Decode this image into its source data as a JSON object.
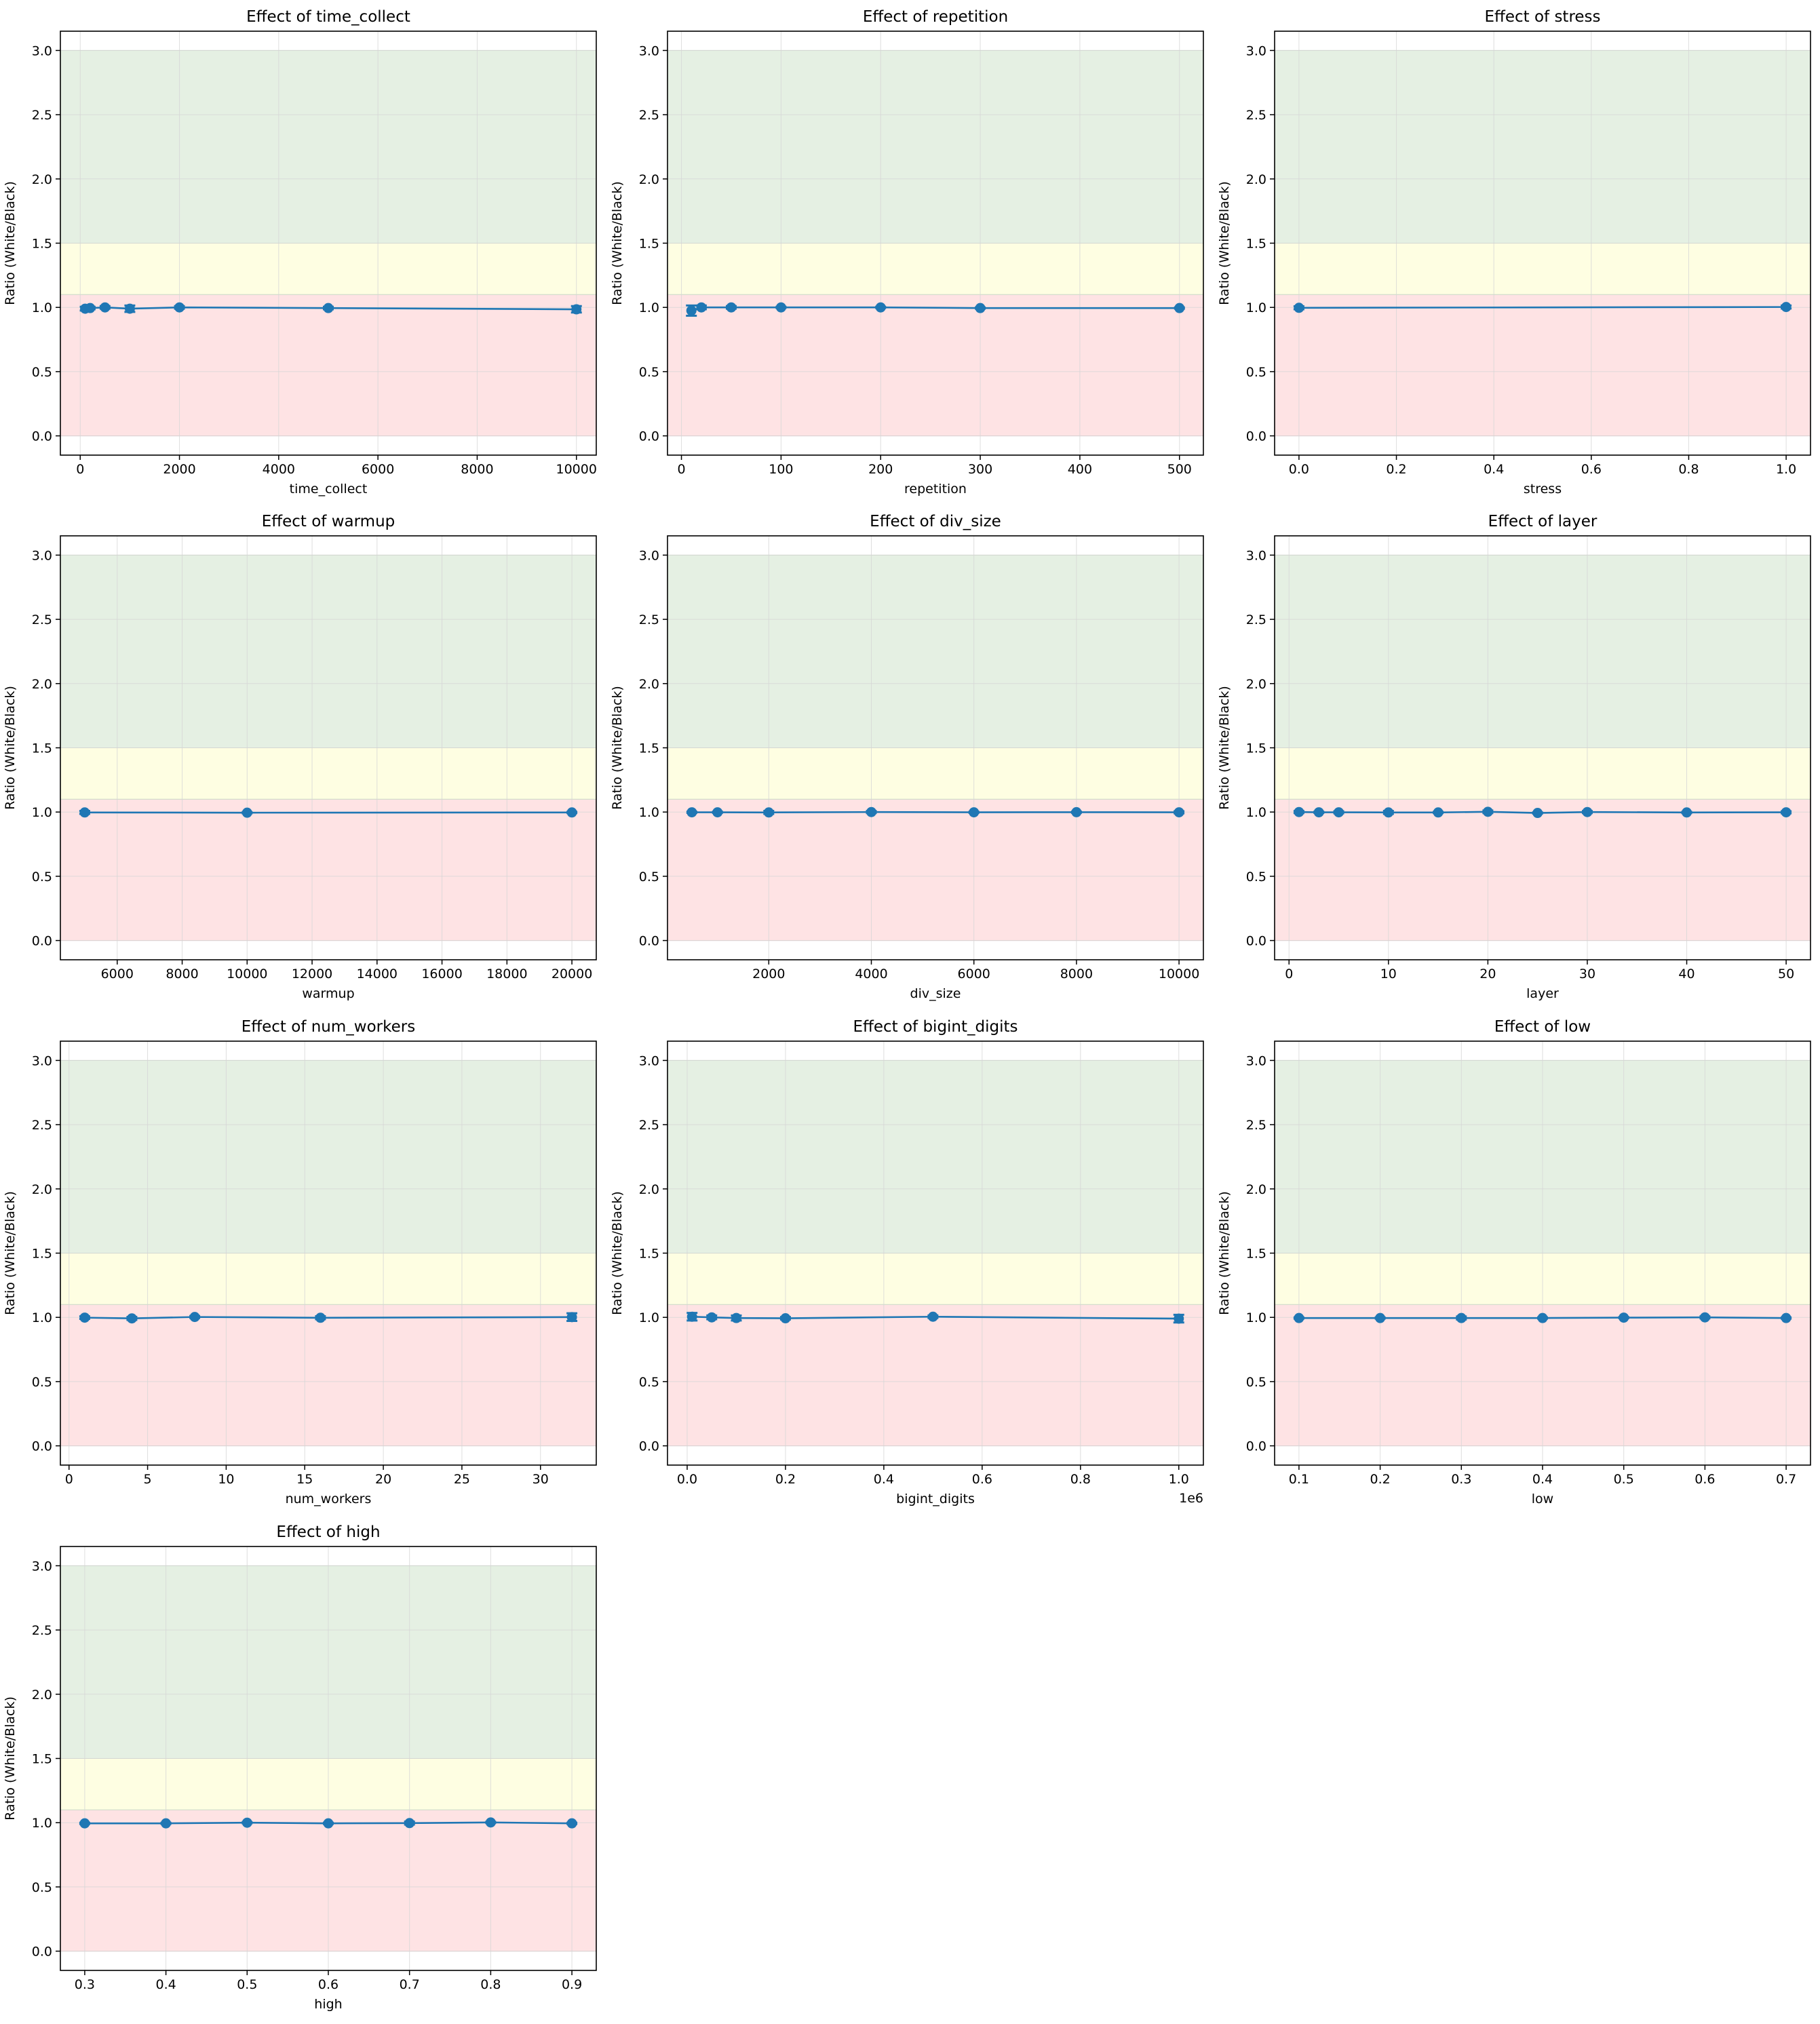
{
  "colors": {
    "series": "#1f77b4",
    "green_band": "#e5f0e3",
    "yellow_band": "#fefee2",
    "red_band": "#fee3e4",
    "grid": "#d6d6d6"
  },
  "chart_data": [
    {
      "type": "line",
      "title": "Effect of time_collect",
      "xlabel": "time_collect",
      "ylabel": "Ratio (White/Black)",
      "xlim": [
        -400,
        10400
      ],
      "ylim": [
        -0.15,
        3.15
      ],
      "xticks": [
        0,
        2000,
        4000,
        6000,
        8000,
        10000
      ],
      "xtick_labels": [
        "0",
        "2000",
        "4000",
        "6000",
        "8000",
        "10000"
      ],
      "yticks": [
        0.0,
        0.5,
        1.0,
        1.5,
        2.0,
        2.5,
        3.0
      ],
      "ytick_labels": [
        "0.0",
        "0.5",
        "1.0",
        "1.5",
        "2.0",
        "2.5",
        "3.0"
      ],
      "bands": [
        {
          "from": 0,
          "to": 1.1,
          "color": "red"
        },
        {
          "from": 1.1,
          "to": 1.5,
          "color": "yellow"
        },
        {
          "from": 1.5,
          "to": 3.0,
          "color": "green"
        }
      ],
      "grid": true,
      "x": [
        100,
        200,
        500,
        1000,
        2000,
        5000,
        10000
      ],
      "y": [
        0.99,
        0.995,
        1.0,
        0.99,
        1.0,
        0.995,
        0.985
      ],
      "yerr": [
        0.015,
        0.01,
        0.01,
        0.025,
        0.01,
        0.01,
        0.025
      ]
    },
    {
      "type": "line",
      "title": "Effect of repetition",
      "xlabel": "repetition",
      "ylabel": "Ratio (White/Black)",
      "xlim": [
        -14,
        524
      ],
      "ylim": [
        -0.15,
        3.15
      ],
      "xticks": [
        0,
        100,
        200,
        300,
        400,
        500
      ],
      "xtick_labels": [
        "0",
        "100",
        "200",
        "300",
        "400",
        "500"
      ],
      "yticks": [
        0.0,
        0.5,
        1.0,
        1.5,
        2.0,
        2.5,
        3.0
      ],
      "ytick_labels": [
        "0.0",
        "0.5",
        "1.0",
        "1.5",
        "2.0",
        "2.5",
        "3.0"
      ],
      "bands": [
        {
          "from": 0,
          "to": 1.1,
          "color": "red"
        },
        {
          "from": 1.1,
          "to": 1.5,
          "color": "yellow"
        },
        {
          "from": 1.5,
          "to": 3.0,
          "color": "green"
        }
      ],
      "grid": true,
      "x": [
        10,
        20,
        50,
        100,
        200,
        300,
        500
      ],
      "y": [
        0.975,
        1.0,
        1.0,
        1.0,
        1.0,
        0.995,
        0.995
      ],
      "yerr": [
        0.04,
        0.015,
        0.01,
        0.005,
        0.005,
        0.005,
        0.005
      ]
    },
    {
      "type": "line",
      "title": "Effect of stress",
      "xlabel": "stress",
      "ylabel": "Ratio (White/Black)",
      "xlim": [
        -0.05,
        1.05
      ],
      "ylim": [
        -0.15,
        3.15
      ],
      "xticks": [
        0.0,
        0.2,
        0.4,
        0.6,
        0.8,
        1.0
      ],
      "xtick_labels": [
        "0.0",
        "0.2",
        "0.4",
        "0.6",
        "0.8",
        "1.0"
      ],
      "yticks": [
        0.0,
        0.5,
        1.0,
        1.5,
        2.0,
        2.5,
        3.0
      ],
      "ytick_labels": [
        "0.0",
        "0.5",
        "1.0",
        "1.5",
        "2.0",
        "2.5",
        "3.0"
      ],
      "bands": [
        {
          "from": 0,
          "to": 1.1,
          "color": "red"
        },
        {
          "from": 1.1,
          "to": 1.5,
          "color": "yellow"
        },
        {
          "from": 1.5,
          "to": 3.0,
          "color": "green"
        }
      ],
      "grid": true,
      "x": [
        0,
        1
      ],
      "y": [
        0.997,
        1.003
      ],
      "yerr": [
        0.012,
        0.012
      ]
    },
    {
      "type": "line",
      "title": "Effect of warmup",
      "xlabel": "warmup",
      "ylabel": "Ratio (White/Black)",
      "xlim": [
        4250,
        20750
      ],
      "ylim": [
        -0.15,
        3.15
      ],
      "xticks": [
        6000,
        8000,
        10000,
        12000,
        14000,
        16000,
        18000,
        20000
      ],
      "xtick_labels": [
        "6000",
        "8000",
        "10000",
        "12000",
        "14000",
        "16000",
        "18000",
        "20000"
      ],
      "yticks": [
        0.0,
        0.5,
        1.0,
        1.5,
        2.0,
        2.5,
        3.0
      ],
      "ytick_labels": [
        "0.0",
        "0.5",
        "1.0",
        "1.5",
        "2.0",
        "2.5",
        "3.0"
      ],
      "bands": [
        {
          "from": 0,
          "to": 1.1,
          "color": "red"
        },
        {
          "from": 1.1,
          "to": 1.5,
          "color": "yellow"
        },
        {
          "from": 1.5,
          "to": 3.0,
          "color": "green"
        }
      ],
      "grid": true,
      "x": [
        5000,
        10000,
        20000
      ],
      "y": [
        0.997,
        0.995,
        0.997
      ],
      "yerr": [
        0.012,
        0.005,
        0.005
      ]
    },
    {
      "type": "line",
      "title": "Effect of div_size",
      "xlabel": "div_size",
      "ylabel": "Ratio (White/Black)",
      "xlim": [
        25,
        10475
      ],
      "ylim": [
        -0.15,
        3.15
      ],
      "xticks": [
        2000,
        4000,
        6000,
        8000,
        10000
      ],
      "xtick_labels": [
        "2000",
        "4000",
        "6000",
        "8000",
        "10000"
      ],
      "yticks": [
        0.0,
        0.5,
        1.0,
        1.5,
        2.0,
        2.5,
        3.0
      ],
      "ytick_labels": [
        "0.0",
        "0.5",
        "1.0",
        "1.5",
        "2.0",
        "2.5",
        "3.0"
      ],
      "bands": [
        {
          "from": 0,
          "to": 1.1,
          "color": "red"
        },
        {
          "from": 1.1,
          "to": 1.5,
          "color": "yellow"
        },
        {
          "from": 1.5,
          "to": 3.0,
          "color": "green"
        }
      ],
      "grid": true,
      "x": [
        500,
        1000,
        2000,
        4000,
        6000,
        8000,
        10000
      ],
      "y": [
        0.998,
        0.998,
        0.997,
        1.0,
        0.998,
        0.999,
        0.998
      ],
      "yerr": [
        0.005,
        0.005,
        0.012,
        0.008,
        0.005,
        0.005,
        0.008
      ]
    },
    {
      "type": "line",
      "title": "Effect of layer",
      "xlabel": "layer",
      "ylabel": "Ratio (White/Black)",
      "xlim": [
        -1.45,
        52.45
      ],
      "ylim": [
        -0.15,
        3.15
      ],
      "xticks": [
        0,
        10,
        20,
        30,
        40,
        50
      ],
      "xtick_labels": [
        "0",
        "10",
        "20",
        "30",
        "40",
        "50"
      ],
      "yticks": [
        0.0,
        0.5,
        1.0,
        1.5,
        2.0,
        2.5,
        3.0
      ],
      "ytick_labels": [
        "0.0",
        "0.5",
        "1.0",
        "1.5",
        "2.0",
        "2.5",
        "3.0"
      ],
      "bands": [
        {
          "from": 0,
          "to": 1.1,
          "color": "red"
        },
        {
          "from": 1.1,
          "to": 1.5,
          "color": "yellow"
        },
        {
          "from": 1.5,
          "to": 3.0,
          "color": "green"
        }
      ],
      "grid": true,
      "x": [
        1,
        3,
        5,
        10,
        15,
        20,
        25,
        30,
        40,
        50
      ],
      "y": [
        1.0,
        0.998,
        0.998,
        0.997,
        0.997,
        1.002,
        0.993,
        1.0,
        0.997,
        0.998
      ],
      "yerr": [
        0.008,
        0.005,
        0.008,
        0.012,
        0.005,
        0.01,
        0.005,
        0.008,
        0.005,
        0.008
      ]
    },
    {
      "type": "line",
      "title": "Effect of num_workers",
      "xlabel": "num_workers",
      "ylabel": "Ratio (White/Black)",
      "xlim": [
        -0.55,
        33.55
      ],
      "ylim": [
        -0.15,
        3.15
      ],
      "xticks": [
        0,
        5,
        10,
        15,
        20,
        25,
        30
      ],
      "xtick_labels": [
        "0",
        "5",
        "10",
        "15",
        "20",
        "25",
        "30"
      ],
      "yticks": [
        0.0,
        0.5,
        1.0,
        1.5,
        2.0,
        2.5,
        3.0
      ],
      "ytick_labels": [
        "0.0",
        "0.5",
        "1.0",
        "1.5",
        "2.0",
        "2.5",
        "3.0"
      ],
      "bands": [
        {
          "from": 0,
          "to": 1.1,
          "color": "red"
        },
        {
          "from": 1.1,
          "to": 1.5,
          "color": "yellow"
        },
        {
          "from": 1.5,
          "to": 3.0,
          "color": "green"
        }
      ],
      "grid": true,
      "x": [
        1,
        4,
        8,
        16,
        32
      ],
      "y": [
        0.998,
        0.992,
        1.003,
        0.997,
        1.002
      ],
      "yerr": [
        0.01,
        0.012,
        0.008,
        0.012,
        0.03
      ]
    },
    {
      "type": "line",
      "title": "Effect of bigint_digits",
      "xlabel": "bigint_digits",
      "ylabel": "Ratio (White/Black)",
      "xlim": [
        -40000,
        1050000
      ],
      "ylim": [
        -0.15,
        3.15
      ],
      "xticks": [
        0,
        200000,
        400000,
        600000,
        800000,
        1000000
      ],
      "xtick_labels": [
        "0.0",
        "0.2",
        "0.4",
        "0.6",
        "0.8",
        "1.0"
      ],
      "x_offset_label": "1e6",
      "yticks": [
        0.0,
        0.5,
        1.0,
        1.5,
        2.0,
        2.5,
        3.0
      ],
      "ytick_labels": [
        "0.0",
        "0.5",
        "1.0",
        "1.5",
        "2.0",
        "2.5",
        "3.0"
      ],
      "bands": [
        {
          "from": 0,
          "to": 1.1,
          "color": "red"
        },
        {
          "from": 1.1,
          "to": 1.5,
          "color": "yellow"
        },
        {
          "from": 1.5,
          "to": 3.0,
          "color": "green"
        }
      ],
      "grid": true,
      "x": [
        10000,
        50000,
        100000,
        200000,
        500000,
        1000000
      ],
      "y": [
        1.005,
        1.0,
        0.995,
        0.993,
        1.005,
        0.99
      ],
      "yerr": [
        0.03,
        0.015,
        0.02,
        0.01,
        0.01,
        0.03
      ]
    },
    {
      "type": "line",
      "title": "Effect of low",
      "xlabel": "low",
      "ylabel": "Ratio (White/Black)",
      "xlim": [
        0.07,
        0.73
      ],
      "ylim": [
        -0.15,
        3.15
      ],
      "xticks": [
        0.1,
        0.2,
        0.3,
        0.4,
        0.5,
        0.6,
        0.7
      ],
      "xtick_labels": [
        "0.1",
        "0.2",
        "0.3",
        "0.4",
        "0.5",
        "0.6",
        "0.7"
      ],
      "yticks": [
        0.0,
        0.5,
        1.0,
        1.5,
        2.0,
        2.5,
        3.0
      ],
      "ytick_labels": [
        "0.0",
        "0.5",
        "1.0",
        "1.5",
        "2.0",
        "2.5",
        "3.0"
      ],
      "bands": [
        {
          "from": 0,
          "to": 1.1,
          "color": "red"
        },
        {
          "from": 1.1,
          "to": 1.5,
          "color": "yellow"
        },
        {
          "from": 1.5,
          "to": 3.0,
          "color": "green"
        }
      ],
      "grid": true,
      "x": [
        0.1,
        0.2,
        0.3,
        0.4,
        0.5,
        0.6,
        0.7
      ],
      "y": [
        0.995,
        0.995,
        0.995,
        0.995,
        0.998,
        1.0,
        0.995
      ],
      "yerr": [
        0.005,
        0.005,
        0.012,
        0.005,
        0.005,
        0.008,
        0.005
      ]
    },
    {
      "type": "line",
      "title": "Effect of high",
      "xlabel": "high",
      "ylabel": "Ratio (White/Black)",
      "xlim": [
        0.27,
        0.93
      ],
      "ylim": [
        -0.15,
        3.15
      ],
      "xticks": [
        0.3,
        0.4,
        0.5,
        0.6,
        0.7,
        0.8,
        0.9
      ],
      "xtick_labels": [
        "0.3",
        "0.4",
        "0.5",
        "0.6",
        "0.7",
        "0.8",
        "0.9"
      ],
      "yticks": [
        0.0,
        0.5,
        1.0,
        1.5,
        2.0,
        2.5,
        3.0
      ],
      "ytick_labels": [
        "0.0",
        "0.5",
        "1.0",
        "1.5",
        "2.0",
        "2.5",
        "3.0"
      ],
      "bands": [
        {
          "from": 0,
          "to": 1.1,
          "color": "red"
        },
        {
          "from": 1.1,
          "to": 1.5,
          "color": "yellow"
        },
        {
          "from": 1.5,
          "to": 3.0,
          "color": "green"
        }
      ],
      "grid": true,
      "x": [
        0.3,
        0.4,
        0.5,
        0.6,
        0.7,
        0.8,
        0.9
      ],
      "y": [
        0.995,
        0.995,
        1.0,
        0.995,
        0.997,
        1.002,
        0.995
      ],
      "yerr": [
        0.005,
        0.005,
        0.005,
        0.005,
        0.012,
        0.005,
        0.005
      ]
    }
  ]
}
